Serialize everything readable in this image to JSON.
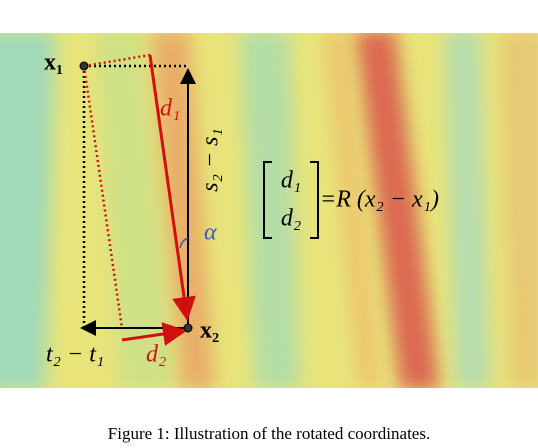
{
  "figure": {
    "labels": {
      "x1": "x₁",
      "d1": "d₁",
      "s_diff": "s₂ − s₁",
      "alpha": "α",
      "t_diff": "t₂ − t₁",
      "d2": "d₂",
      "x2": "x₂"
    },
    "equation": {
      "matrix": [
        "d₁",
        "d₂"
      ],
      "rhs": "=R (x₂ − x₁)"
    },
    "caption": "Figure 1: Illustration of the rotated coordinates."
  }
}
